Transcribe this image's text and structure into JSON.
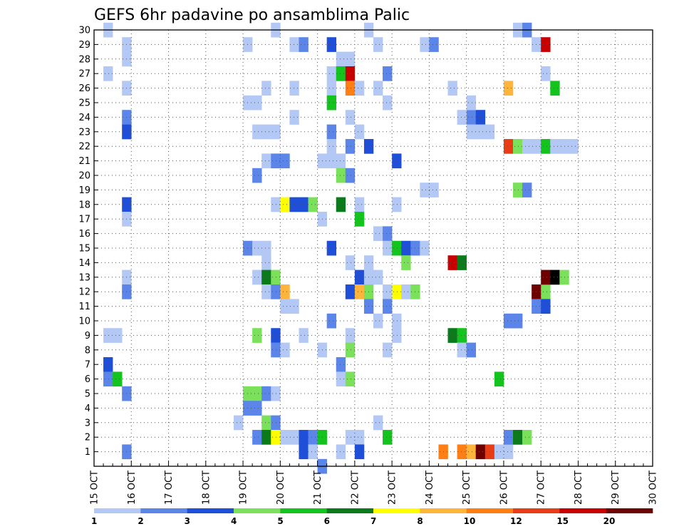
{
  "chart_data": {
    "type": "heatmap",
    "title": "GEFS 6hr padavine po ansamblima Palic",
    "xlabel": "",
    "ylabel": "",
    "x_ticks": [
      "15 OCT",
      "16 OCT",
      "17 OCT",
      "18 OCT",
      "19 OCT",
      "20 OCT",
      "21 OCT",
      "22 OCT",
      "23 OCT",
      "24 OCT",
      "25 OCT",
      "26 OCT",
      "27 OCT",
      "28 OCT",
      "29 OCT",
      "30 OCT"
    ],
    "y_ticks": [
      "1",
      "2",
      "3",
      "4",
      "5",
      "6",
      "7",
      "8",
      "9",
      "10",
      "11",
      "12",
      "13",
      "14",
      "15",
      "16",
      "17",
      "18",
      "19",
      "20",
      "21",
      "22",
      "23",
      "24",
      "25",
      "26",
      "27",
      "28",
      "29",
      "30"
    ],
    "x_unit": "6-hour step (4 per day), step 0 = 15 OCT 00Z",
    "xlim": [
      0,
      60
    ],
    "ylim": [
      0,
      30
    ],
    "grid": true,
    "legend": "bottom colorbar",
    "colorbar": {
      "labels": [
        "1",
        "2",
        "3",
        "4",
        "5",
        "6",
        "7",
        "8",
        "10",
        "12",
        "15",
        "20"
      ],
      "colors": [
        "#b3c8f5",
        "#5b85e8",
        "#1f4fd8",
        "#7be05a",
        "#14c31e",
        "#0b7a1a",
        "#ffff00",
        "#ffb43c",
        "#ff7f14",
        "#e83c14",
        "#c80000",
        "#6e0000"
      ]
    },
    "cells": [
      [
        1,
        30,
        1
      ],
      [
        3,
        29,
        1
      ],
      [
        3,
        28,
        1
      ],
      [
        1,
        27,
        1
      ],
      [
        3,
        26,
        1
      ],
      [
        3,
        24,
        2
      ],
      [
        3,
        23,
        3
      ],
      [
        3,
        18,
        3
      ],
      [
        3,
        17,
        1
      ],
      [
        3,
        13,
        1
      ],
      [
        3,
        12,
        2
      ],
      [
        1,
        9,
        1
      ],
      [
        2,
        9,
        1
      ],
      [
        1,
        7,
        3
      ],
      [
        1,
        6,
        2
      ],
      [
        2,
        6,
        5
      ],
      [
        3,
        5,
        2
      ],
      [
        3,
        1,
        2
      ],
      [
        16,
        29,
        1
      ],
      [
        16,
        25,
        1
      ],
      [
        17,
        25,
        1
      ],
      [
        17,
        23,
        1
      ],
      [
        18,
        23,
        1
      ],
      [
        19,
        23,
        1
      ],
      [
        18,
        21,
        1
      ],
      [
        19,
        21,
        2
      ],
      [
        20,
        21,
        2
      ],
      [
        17,
        20,
        2
      ],
      [
        16,
        15,
        2
      ],
      [
        17,
        15,
        1
      ],
      [
        18,
        15,
        1
      ],
      [
        18,
        14,
        1
      ],
      [
        17,
        13,
        1
      ],
      [
        18,
        13,
        6
      ],
      [
        19,
        13,
        4
      ],
      [
        18,
        12,
        1
      ],
      [
        19,
        12,
        2
      ],
      [
        20,
        12,
        8
      ],
      [
        20,
        11,
        1
      ],
      [
        21,
        11,
        1
      ],
      [
        17,
        9,
        4
      ],
      [
        19,
        9,
        3
      ],
      [
        19,
        8,
        2
      ],
      [
        20,
        8,
        1
      ],
      [
        16,
        5,
        4
      ],
      [
        17,
        5,
        4
      ],
      [
        18,
        5,
        2
      ],
      [
        19,
        5,
        1
      ],
      [
        16,
        4,
        2
      ],
      [
        17,
        4,
        2
      ],
      [
        15,
        3,
        1
      ],
      [
        18,
        3,
        4
      ],
      [
        19,
        3,
        2
      ],
      [
        17,
        2,
        2
      ],
      [
        18,
        2,
        6
      ],
      [
        19,
        2,
        7
      ],
      [
        20,
        2,
        1
      ],
      [
        21,
        2,
        1
      ],
      [
        22,
        2,
        3
      ],
      [
        23,
        2,
        2
      ],
      [
        22,
        1,
        3
      ],
      [
        23,
        1,
        1
      ],
      [
        19,
        30,
        1
      ],
      [
        21,
        29,
        1
      ],
      [
        22,
        29,
        2
      ],
      [
        21,
        26,
        1
      ],
      [
        18,
        26,
        1
      ],
      [
        19,
        18,
        1
      ],
      [
        20,
        18,
        7
      ],
      [
        21,
        18,
        3
      ],
      [
        22,
        18,
        3
      ],
      [
        23,
        18,
        4
      ],
      [
        24,
        17,
        1
      ],
      [
        24,
        21,
        1
      ],
      [
        21,
        24,
        1
      ],
      [
        22,
        9,
        1
      ],
      [
        24,
        8,
        1
      ],
      [
        24,
        2,
        5
      ],
      [
        25,
        29,
        3
      ],
      [
        26,
        28,
        1
      ],
      [
        27,
        28,
        1
      ],
      [
        25,
        27,
        1
      ],
      [
        26,
        27,
        5
      ],
      [
        27,
        27,
        11
      ],
      [
        25,
        26,
        1
      ],
      [
        27,
        26,
        9
      ],
      [
        28,
        26,
        1
      ],
      [
        25,
        25,
        5
      ],
      [
        27,
        24,
        1
      ],
      [
        25,
        23,
        2
      ],
      [
        28,
        23,
        1
      ],
      [
        25,
        22,
        1
      ],
      [
        27,
        22,
        2
      ],
      [
        25,
        21,
        1
      ],
      [
        26,
        21,
        1
      ],
      [
        26,
        20,
        4
      ],
      [
        27,
        20,
        2
      ],
      [
        26,
        18,
        6
      ],
      [
        28,
        18,
        1
      ],
      [
        28,
        17,
        5
      ],
      [
        25,
        15,
        3
      ],
      [
        27,
        14,
        1
      ],
      [
        29,
        14,
        1
      ],
      [
        28,
        13,
        3
      ],
      [
        29,
        13,
        1
      ],
      [
        30,
        13,
        1
      ],
      [
        27,
        12,
        3
      ],
      [
        28,
        12,
        8
      ],
      [
        29,
        12,
        4
      ],
      [
        29,
        11,
        2
      ],
      [
        25,
        10,
        2
      ],
      [
        30,
        10,
        1
      ],
      [
        27,
        9,
        1
      ],
      [
        27,
        8,
        4
      ],
      [
        26,
        7,
        2
      ],
      [
        26,
        6,
        1
      ],
      [
        27,
        6,
        4
      ],
      [
        24,
        0,
        2
      ],
      [
        27,
        2,
        1
      ],
      [
        28,
        2,
        1
      ],
      [
        26,
        1,
        1
      ],
      [
        28,
        1,
        3
      ],
      [
        29,
        30,
        1
      ],
      [
        30,
        29,
        1
      ],
      [
        31,
        27,
        2
      ],
      [
        30,
        26,
        1
      ],
      [
        31,
        25,
        1
      ],
      [
        29,
        22,
        3
      ],
      [
        32,
        21,
        3
      ],
      [
        32,
        18,
        1
      ],
      [
        30,
        16,
        1
      ],
      [
        31,
        16,
        2
      ],
      [
        31,
        15,
        1
      ],
      [
        32,
        15,
        5
      ],
      [
        33,
        15,
        3
      ],
      [
        34,
        15,
        2
      ],
      [
        35,
        15,
        1
      ],
      [
        32,
        12,
        7
      ],
      [
        33,
        12,
        1
      ],
      [
        34,
        12,
        4
      ],
      [
        31,
        12,
        1
      ],
      [
        31,
        11,
        2
      ],
      [
        32,
        10,
        1
      ],
      [
        32,
        9,
        1
      ],
      [
        31,
        8,
        1
      ],
      [
        33,
        14,
        4
      ],
      [
        35,
        19,
        1
      ],
      [
        36,
        19,
        1
      ],
      [
        31,
        2,
        5
      ],
      [
        30,
        3,
        1
      ],
      [
        35,
        29,
        1
      ],
      [
        36,
        29,
        2
      ],
      [
        38,
        26,
        1
      ],
      [
        40,
        24,
        2
      ],
      [
        41,
        24,
        3
      ],
      [
        39,
        24,
        1
      ],
      [
        40,
        23,
        1
      ],
      [
        41,
        23,
        1
      ],
      [
        42,
        23,
        1
      ],
      [
        44,
        22,
        10
      ],
      [
        45,
        22,
        4
      ],
      [
        46,
        22,
        1
      ],
      [
        47,
        22,
        1
      ],
      [
        48,
        22,
        5
      ],
      [
        49,
        22,
        1
      ],
      [
        50,
        22,
        1
      ],
      [
        51,
        22,
        1
      ],
      [
        45,
        19,
        4
      ],
      [
        46,
        19,
        2
      ],
      [
        40,
        25,
        1
      ],
      [
        44,
        26,
        8
      ],
      [
        38,
        9,
        6
      ],
      [
        39,
        9,
        5
      ],
      [
        38,
        14,
        11
      ],
      [
        39,
        14,
        6
      ],
      [
        44,
        10,
        2
      ],
      [
        45,
        10,
        2
      ],
      [
        39,
        8,
        1
      ],
      [
        40,
        8,
        2
      ],
      [
        43,
        6,
        5
      ],
      [
        37,
        1,
        9
      ],
      [
        39,
        1,
        9
      ],
      [
        40,
        1,
        8
      ],
      [
        41,
        1,
        12
      ],
      [
        42,
        1,
        10
      ],
      [
        43,
        1,
        1
      ],
      [
        44,
        1,
        1
      ],
      [
        44,
        2,
        2
      ],
      [
        45,
        2,
        6
      ],
      [
        46,
        2,
        4
      ],
      [
        47,
        29,
        1
      ],
      [
        48,
        29,
        11
      ],
      [
        48,
        27,
        1
      ],
      [
        49,
        26,
        5
      ],
      [
        47,
        12,
        12
      ],
      [
        48,
        12,
        4
      ],
      [
        47,
        11,
        2
      ],
      [
        48,
        11,
        3
      ],
      [
        48,
        13,
        12
      ],
      [
        49,
        13,
        13
      ],
      [
        50,
        13,
        4
      ],
      [
        45,
        30,
        1
      ],
      [
        46,
        30,
        2
      ]
    ]
  }
}
